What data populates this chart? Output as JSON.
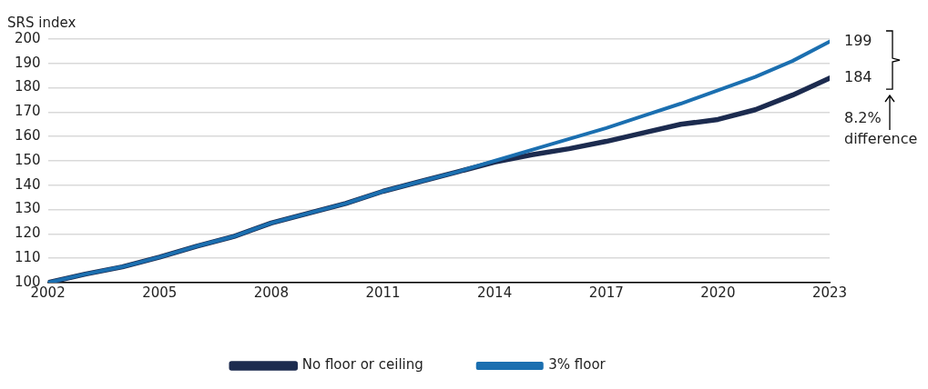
{
  "chart_data": {
    "type": "line",
    "ylabel": "SRS index",
    "x": [
      2002,
      2003,
      2004,
      2005,
      2006,
      2007,
      2008,
      2009,
      2010,
      2011,
      2012,
      2013,
      2014,
      2015,
      2016,
      2017,
      2018,
      2019,
      2020,
      2021,
      2022,
      2023
    ],
    "series": [
      {
        "name": "No floor or ceiling",
        "color": "#1c2b4f",
        "values": [
          100,
          103.5,
          106.5,
          110.5,
          115,
          119,
          124.5,
          128.5,
          132.5,
          137.5,
          141.5,
          145.5,
          149.5,
          152.5,
          155,
          158,
          161.5,
          165,
          167,
          171,
          177,
          184
        ]
      },
      {
        "name": "3% floor",
        "color": "#1b6fb0",
        "values": [
          100,
          103.5,
          106.5,
          110.5,
          115,
          119,
          124.5,
          128.5,
          132.5,
          137.5,
          141.5,
          145.5,
          150,
          154.5,
          159,
          163.5,
          168.5,
          173.5,
          179,
          184.5,
          191,
          199
        ]
      }
    ],
    "xlim": [
      2002,
      2023
    ],
    "xticks": [
      2002,
      2005,
      2008,
      2011,
      2014,
      2017,
      2020,
      2023
    ],
    "ylim": [
      100,
      200
    ],
    "yticks": [
      100,
      110,
      120,
      130,
      140,
      150,
      160,
      170,
      180,
      190,
      200
    ],
    "grid": "y",
    "legend": "bottom",
    "marker": "none",
    "line_style": "solid",
    "annotations": [
      {
        "text": "199",
        "x": 2023,
        "y": 199
      },
      {
        "text": "184",
        "x": 2023,
        "y": 184
      },
      "8.2% difference"
    ]
  }
}
